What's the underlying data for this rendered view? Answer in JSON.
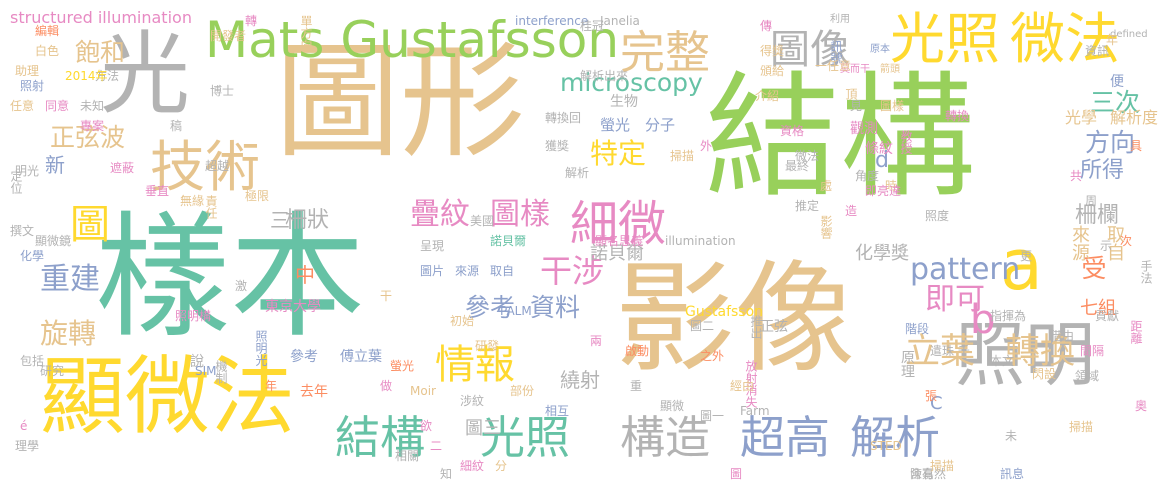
{
  "cloud": {
    "palette": {
      "green": "#98d05b",
      "teal": "#66c2a5",
      "tan": "#e6c48e",
      "pink": "#e78ac3",
      "orange": "#fc8d62",
      "yellow": "#ffd92f",
      "gray": "#b3b3b3",
      "blue": "#8da0cb"
    },
    "words": [
      {
        "text": "樣本",
        "color": "#66c2a5"
      },
      {
        "text": "結構",
        "color": "#98d05b"
      },
      {
        "text": "圖形",
        "color": "#e6c48e"
      },
      {
        "text": "影像",
        "color": "#e6c48e"
      },
      {
        "text": "顯微法",
        "color": "#ffd92f"
      },
      {
        "text": "光",
        "color": "#b3b3b3"
      },
      {
        "text": "照明",
        "color": "#b3b3b3"
      },
      {
        "text": "Mats Gustafsson",
        "color": "#98d05b"
      },
      {
        "text": "光照",
        "color": "#ffd92f"
      },
      {
        "text": "微法",
        "color": "#ffd92f"
      },
      {
        "text": "技術",
        "color": "#e6c48e"
      },
      {
        "text": "完整",
        "color": "#e6c48e"
      },
      {
        "text": "圖像",
        "color": "#b3b3b3"
      },
      {
        "text": "細微",
        "color": "#e78ac3"
      },
      {
        "text": "結構",
        "color": "#66c2a5"
      },
      {
        "text": "光照",
        "color": "#66c2a5"
      },
      {
        "text": "構造",
        "color": "#b3b3b3"
      },
      {
        "text": "超高",
        "color": "#8da0cb"
      },
      {
        "text": "解析",
        "color": "#8da0cb"
      },
      {
        "text": "a",
        "color": "#ffd92f"
      },
      {
        "text": "b",
        "color": "#e78ac3"
      },
      {
        "text": "情報",
        "color": "#ffd92f"
      },
      {
        "text": "立葉",
        "color": "#e6c48e"
      },
      {
        "text": "轉換",
        "color": "#e6c48e"
      },
      {
        "text": "即可",
        "color": "#e78ac3"
      },
      {
        "text": "圖",
        "color": "#ffd92f"
      },
      {
        "text": "干涉",
        "color": "#e78ac3"
      },
      {
        "text": "參考",
        "color": "#8da0cb"
      },
      {
        "text": "資料",
        "color": "#8da0cb"
      },
      {
        "text": "疊紋",
        "color": "#e78ac3"
      },
      {
        "text": "圖樣",
        "color": "#e78ac3"
      },
      {
        "text": "重建",
        "color": "#8da0cb"
      },
      {
        "text": "旋轉",
        "color": "#e6c48e"
      },
      {
        "text": "特定",
        "color": "#ffd92f"
      },
      {
        "text": "方向",
        "color": "#8da0cb"
      },
      {
        "text": "三次",
        "color": "#66c2a5"
      },
      {
        "text": "所得",
        "color": "#8da0cb"
      },
      {
        "text": "pattern",
        "color": "#8da0cb"
      },
      {
        "text": "microscopy",
        "color": "#66c2a5"
      },
      {
        "text": "正弦波",
        "color": "#e6c48e"
      },
      {
        "text": "飽和",
        "color": "#e6c48e"
      },
      {
        "text": "柵欄",
        "color": "#b3b3b3"
      },
      {
        "text": "柵狀",
        "color": "#b3b3b3"
      },
      {
        "text": "諾貝爾",
        "color": "#b3b3b3"
      },
      {
        "text": "化學獎",
        "color": "#b3b3b3"
      },
      {
        "text": "繞射",
        "color": "#b3b3b3"
      },
      {
        "text": "新",
        "color": "#8da0cb"
      },
      {
        "text": "d",
        "color": "#8da0cb"
      },
      {
        "text": "受",
        "color": "#fc8d62"
      },
      {
        "text": "中",
        "color": "#fc8d62"
      },
      {
        "text": "三",
        "color": "#b3b3b3"
      },
      {
        "text": "來源",
        "color": "#e6c48e"
      },
      {
        "text": "取自",
        "color": "#e6c48e"
      },
      {
        "text": "七組",
        "color": "#fc8d62"
      },
      {
        "text": "structured illumination",
        "color": "#e78ac3"
      },
      {
        "text": "interference",
        "color": "#8da0cb"
      },
      {
        "text": "Janelia",
        "color": "#b3b3b3"
      },
      {
        "text": "光學",
        "color": "#e6c48e"
      },
      {
        "text": "解析度",
        "color": "#e6c48e"
      },
      {
        "text": "生物",
        "color": "#b3b3b3"
      },
      {
        "text": "螢光",
        "color": "#8da0cb"
      },
      {
        "text": "分子",
        "color": "#8da0cb"
      },
      {
        "text": "觀測",
        "color": "#e78ac3"
      },
      {
        "text": "條紋",
        "color": "#e78ac3"
      },
      {
        "text": "東京大學",
        "color": "#e78ac3"
      },
      {
        "text": "Gustafsson",
        "color": "#ffd92f"
      },
      {
        "text": "圖片",
        "color": "#8da0cb"
      },
      {
        "text": "來源",
        "color": "#8da0cb"
      },
      {
        "text": "取自",
        "color": "#8da0cb"
      },
      {
        "text": "參考",
        "color": "#8da0cb"
      },
      {
        "text": "傅立葉",
        "color": "#8da0cb"
      },
      {
        "text": "原理",
        "color": "#b3b3b3"
      },
      {
        "text": "階段",
        "color": "#8da0cb"
      },
      {
        "text": "極限",
        "color": "#e6c48e"
      },
      {
        "text": "超越",
        "color": "#b3b3b3"
      },
      {
        "text": "博士",
        "color": "#b3b3b3"
      },
      {
        "text": "照射",
        "color": "#8da0cb"
      },
      {
        "text": "方法",
        "color": "#b3b3b3"
      },
      {
        "text": "2014年",
        "color": "#ffd92f"
      },
      {
        "text": "莫而干",
        "color": "#e78ac3"
      },
      {
        "text": "箭頭",
        "color": "#e6c48e"
      },
      {
        "text": "原本",
        "color": "#8da0cb"
      },
      {
        "text": "資訊",
        "color": "#b3b3b3"
      },
      {
        "text": "defined",
        "color": "#b3b3b3"
      },
      {
        "text": "利用",
        "color": "#b3b3b3"
      },
      {
        "text": "傳",
        "color": "#e78ac3"
      },
      {
        "text": "單方向",
        "color": "#e6c48e"
      },
      {
        "text": "桂冠",
        "color": "#b3b3b3"
      },
      {
        "text": "獲獎",
        "color": "#b3b3b3"
      },
      {
        "text": "轉換回",
        "color": "#b3b3b3"
      },
      {
        "text": "解析",
        "color": "#b3b3b3"
      },
      {
        "text": "掃描",
        "color": "#e6c48e"
      },
      {
        "text": "影響",
        "color": "#e6c48e"
      },
      {
        "text": "推定",
        "color": "#b3b3b3"
      },
      {
        "text": "角度",
        "color": "#b3b3b3"
      },
      {
        "text": "微法",
        "color": "#b3b3b3"
      },
      {
        "text": "資格",
        "color": "#e78ac3"
      },
      {
        "text": "教授",
        "color": "#e78ac3"
      },
      {
        "text": "圖樣",
        "color": "#e6c48e"
      },
      {
        "text": "頂",
        "color": "#e6c48e"
      },
      {
        "text": "訊號",
        "color": "#8da0cb"
      },
      {
        "text": "初始",
        "color": "#e6c48e"
      },
      {
        "text": "PALM",
        "color": "#8da0cb"
      },
      {
        "text": "研發",
        "color": "#e6c48e"
      },
      {
        "text": "照明光",
        "color": "#8da0cb"
      },
      {
        "text": "推出",
        "color": "#b3b3b3"
      },
      {
        "text": "放射消失",
        "color": "#e78ac3"
      },
      {
        "text": "相互",
        "color": "#8da0cb"
      },
      {
        "text": "涉紋",
        "color": "#b3b3b3"
      },
      {
        "text": "部份",
        "color": "#e6c48e"
      },
      {
        "text": "去年",
        "color": "#fc8d62"
      },
      {
        "text": "螢光",
        "color": "#fc8d62"
      },
      {
        "text": "SIM",
        "color": "#8da0cb"
      },
      {
        "text": "Moir",
        "color": "#e6c48e"
      },
      {
        "text": "研究",
        "color": "#b3b3b3"
      },
      {
        "text": "包括",
        "color": "#b3b3b3"
      },
      {
        "text": "圖一",
        "color": "#b3b3b3"
      },
      {
        "text": "Farm",
        "color": "#b3b3b3"
      },
      {
        "text": "STED",
        "color": "#e6c48e"
      },
      {
        "text": "含有",
        "color": "#b3b3b3"
      },
      {
        "text": "訊息",
        "color": "#8da0cb"
      },
      {
        "text": "陳嘉然",
        "color": "#b3b3b3"
      },
      {
        "text": "借由",
        "color": "#b3b3b3"
      },
      {
        "text": "領域",
        "color": "#b3b3b3"
      },
      {
        "text": "間隔",
        "color": "#e78ac3"
      },
      {
        "text": "貢獻",
        "color": "#b3b3b3"
      },
      {
        "text": "指揮為",
        "color": "#b3b3b3"
      },
      {
        "text": "本文",
        "color": "#b3b3b3"
      },
      {
        "text": "遣珠 千",
        "color": "#b3b3b3"
      },
      {
        "text": "顯名思義",
        "color": "#e78ac3"
      },
      {
        "text": "illumination",
        "color": "#b3b3b3"
      },
      {
        "text": "諾貝爾",
        "color": "#66c2a5"
      },
      {
        "text": "正弦",
        "color": "#b3b3b3"
      },
      {
        "text": "解析出來",
        "color": "#b3b3b3"
      },
      {
        "text": "垂直",
        "color": "#e78ac3"
      },
      {
        "text": "責任",
        "color": "#e6c48e"
      },
      {
        "text": "無緣",
        "color": "#e6c48e"
      },
      {
        "text": "顯微鏡",
        "color": "#b3b3b3"
      },
      {
        "text": "化學",
        "color": "#8da0cb"
      },
      {
        "text": "撰文",
        "color": "#b3b3b3"
      },
      {
        "text": "明光",
        "color": "#b3b3b3"
      },
      {
        "text": "遮蔽",
        "color": "#e78ac3"
      },
      {
        "text": "定位",
        "color": "#b3b3b3"
      },
      {
        "text": "未知",
        "color": "#b3b3b3"
      },
      {
        "text": "專案",
        "color": "#e78ac3"
      },
      {
        "text": "任意",
        "color": "#e6c48e"
      },
      {
        "text": "同意",
        "color": "#e78ac3"
      },
      {
        "text": "助理",
        "color": "#e6c48e"
      },
      {
        "text": "白色",
        "color": "#e6c48e"
      },
      {
        "text": "編輯",
        "color": "#fc8d62"
      },
      {
        "text": "開發者",
        "color": "#e6c48e"
      },
      {
        "text": "介紹",
        "color": "#e6c48e"
      },
      {
        "text": "頒給",
        "color": "#e6c48e"
      },
      {
        "text": "得獎",
        "color": "#e6c48e"
      },
      {
        "text": "一任意",
        "color": "#e6c48e"
      },
      {
        "text": "經由",
        "color": "#e6c48e"
      },
      {
        "text": "圖二",
        "color": "#b3b3b3"
      },
      {
        "text": "啟動",
        "color": "#fc8d62"
      },
      {
        "text": "美國",
        "color": "#b3b3b3"
      },
      {
        "text": "掃描",
        "color": "#e6c48e"
      },
      {
        "text": "手法",
        "color": "#b3b3b3"
      },
      {
        "text": "距離",
        "color": "#e78ac3"
      },
      {
        "text": "理學",
        "color": "#b3b3b3"
      },
      {
        "text": "之外",
        "color": "#fc8d62"
      },
      {
        "text": "顯微",
        "color": "#b3b3b3"
      },
      {
        "text": "細紋",
        "color": "#e78ac3"
      },
      {
        "text": "相關",
        "color": "#b3b3b3"
      },
      {
        "text": "機制",
        "color": "#b3b3b3"
      },
      {
        "text": "照明構",
        "color": "#e78ac3"
      },
      {
        "text": "呈現",
        "color": "#b3b3b3"
      },
      {
        "text": "圖三",
        "color": "#b3b3b3"
      },
      {
        "text": "C",
        "color": "#8da0cb"
      },
      {
        "text": "說",
        "color": "#b3b3b3"
      },
      {
        "text": "欲",
        "color": "#e78ac3"
      },
      {
        "text": "年",
        "color": "#fc8d62"
      },
      {
        "text": "做",
        "color": "#e78ac3"
      },
      {
        "text": "兩",
        "color": "#e78ac3"
      },
      {
        "text": "見",
        "color": "#b3b3b3"
      },
      {
        "text": "共",
        "color": "#e78ac3"
      },
      {
        "text": "示",
        "color": "#b3b3b3"
      },
      {
        "text": "次",
        "color": "#fc8d62"
      },
      {
        "text": "具",
        "color": "#fc8d62"
      },
      {
        "text": "更",
        "color": "#b3b3b3"
      },
      {
        "text": "便",
        "color": "#8da0cb"
      },
      {
        "text": "張",
        "color": "#fc8d62"
      },
      {
        "text": "外",
        "color": "#e78ac3"
      },
      {
        "text": "時",
        "color": "#e6c48e"
      },
      {
        "text": "周",
        "color": "#b3b3b3"
      },
      {
        "text": "二",
        "color": "#e78ac3"
      },
      {
        "text": "轉",
        "color": "#e78ac3"
      },
      {
        "text": "知",
        "color": "#b3b3b3"
      },
      {
        "text": "干",
        "color": "#e6c48e"
      },
      {
        "text": "é",
        "color": "#e78ac3"
      },
      {
        "text": "激",
        "color": "#b3b3b3"
      },
      {
        "text": "稿",
        "color": "#b3b3b3"
      },
      {
        "text": "重",
        "color": "#b3b3b3"
      },
      {
        "text": "分",
        "color": "#e6c48e"
      },
      {
        "text": "未",
        "color": "#b3b3b3"
      },
      {
        "text": "造",
        "color": "#e78ac3"
      },
      {
        "text": "處",
        "color": "#e6c48e"
      },
      {
        "text": "最終",
        "color": "#b3b3b3"
      },
      {
        "text": "照度",
        "color": "#b3b3b3"
      },
      {
        "text": "即亮達",
        "color": "#e78ac3"
      },
      {
        "text": "轉換",
        "color": "#e78ac3"
      },
      {
        "text": "奧",
        "color": "#e78ac3"
      },
      {
        "text": "圖",
        "color": "#e78ac3"
      },
      {
        "text": "閃設",
        "color": "#e6c48e"
      },
      {
        "text": "掃描",
        "color": "#e6c48e"
      },
      {
        "text": "年",
        "color": "#e6c48e"
      }
    ]
  }
}
